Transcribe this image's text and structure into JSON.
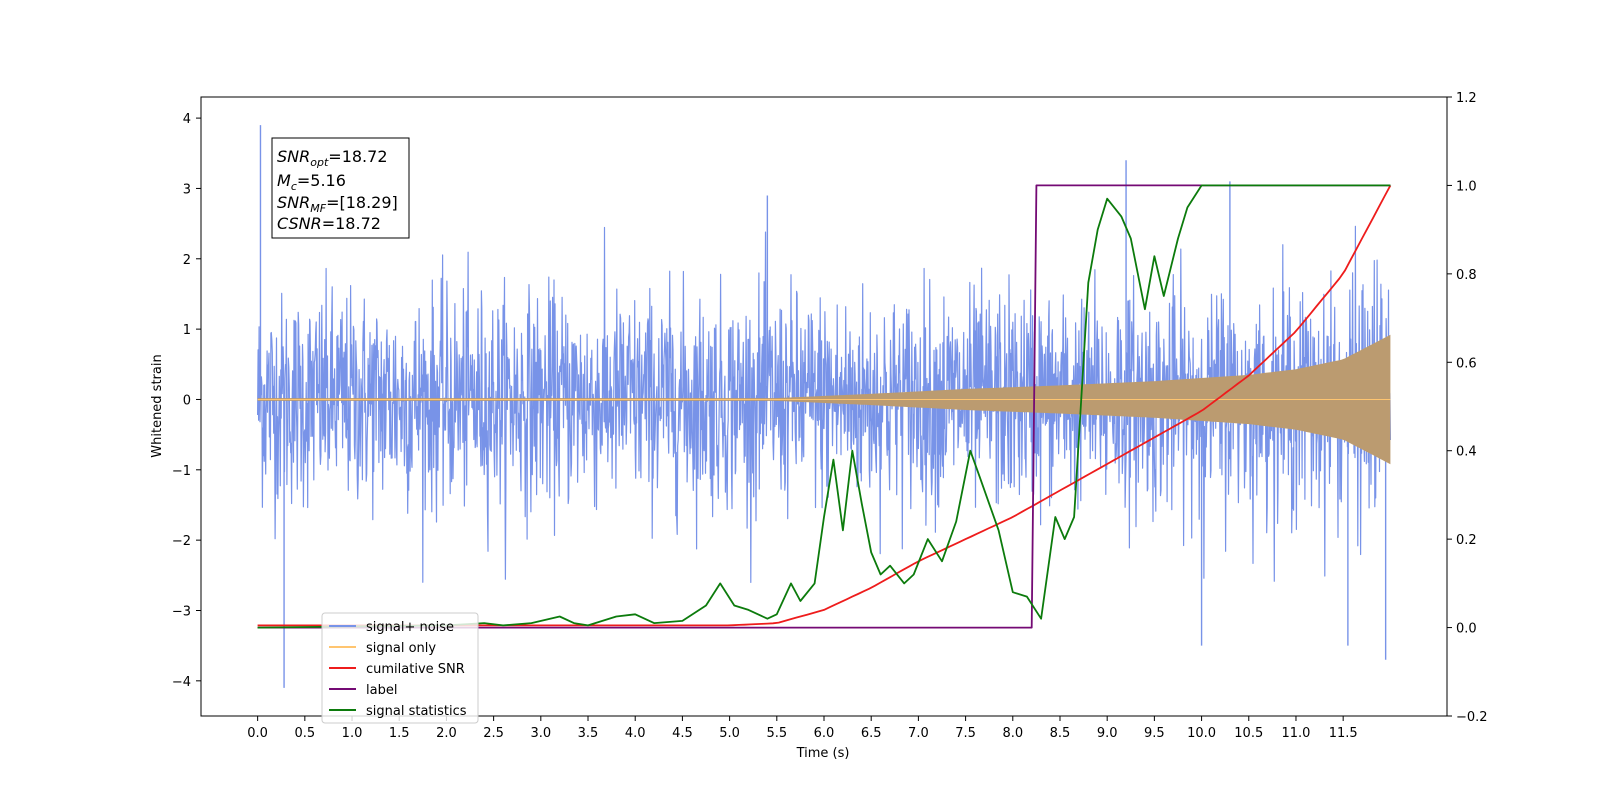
{
  "chart_data": {
    "type": "line",
    "xlabel": "Time (s)",
    "ylabel": "Whitened strain",
    "xlim": [
      -0.6,
      12.6
    ],
    "ylim": [
      -4.5,
      4.3
    ],
    "y2lim": [
      -0.2,
      1.2
    ],
    "x_ticks": [
      0.0,
      0.5,
      1.0,
      1.5,
      2.0,
      2.5,
      3.0,
      3.5,
      4.0,
      4.5,
      5.0,
      5.5,
      6.0,
      6.5,
      7.0,
      7.5,
      8.0,
      8.5,
      9.0,
      9.5,
      10.0,
      10.5,
      11.0,
      11.5
    ],
    "x_tick_labels": [
      "0.0",
      "0.5",
      "1.0",
      "1.5",
      "2.0",
      "2.5",
      "3.0",
      "3.5",
      "4.0",
      "4.5",
      "5.0",
      "5.5",
      "6.0",
      "6.5",
      "7.0",
      "7.5",
      "8.0",
      "8.5",
      "9.0",
      "9.5",
      "10.0",
      "10.5",
      "11.0",
      "11.5"
    ],
    "y_ticks": [
      -4,
      -3,
      -2,
      -1,
      0,
      1,
      2,
      3,
      4
    ],
    "y_tick_labels": [
      "−4",
      "−3",
      "−2",
      "−1",
      "0",
      "1",
      "2",
      "3",
      "4"
    ],
    "y2_ticks": [
      -0.2,
      0.0,
      0.2,
      0.4,
      0.6,
      0.8,
      1.0,
      1.2
    ],
    "y2_tick_labels": [
      "−0.2",
      "0.0",
      "0.2",
      "0.4",
      "0.6",
      "0.8",
      "1.0",
      "1.2"
    ],
    "grid": false,
    "legend_position": "lower-left",
    "info_box": {
      "line1_main": "SNR",
      "line1_sub": "opt",
      "line1_value": "=18.72",
      "line2_main": "M",
      "line2_sub": "c",
      "line2_value": "=5.16",
      "line3_main": "SNR",
      "line3_sub": "MF",
      "line3_value": "=[18.29]",
      "line4_main": "CSNR",
      "line4_value": "=18.72"
    },
    "series": [
      {
        "name": "signal+ noise",
        "axis": "left",
        "color": "#7893e8",
        "style": "dense-noise",
        "t_range": [
          0.0,
          12.0
        ],
        "peak_max": 3.9,
        "peak_min": -4.1,
        "typical_envelope": [
          -2.0,
          2.1
        ]
      },
      {
        "name": "signal only",
        "axis": "left",
        "color": "#ffc570",
        "style": "chirp",
        "envelope": {
          "t": [
            0.0,
            5.5,
            6.5,
            7.5,
            8.5,
            9.5,
            10.5,
            11.0,
            11.5,
            12.0
          ],
          "amp": [
            0.02,
            0.02,
            0.08,
            0.15,
            0.2,
            0.26,
            0.35,
            0.43,
            0.57,
            0.92
          ]
        }
      },
      {
        "name": "cumilative SNR",
        "axis": "right",
        "color": "#ee1c1c",
        "x": [
          0.0,
          5.0,
          5.5,
          6.0,
          6.5,
          7.0,
          7.5,
          8.0,
          8.5,
          9.0,
          9.5,
          10.0,
          10.5,
          11.0,
          11.5,
          12.0
        ],
        "y": [
          0.005,
          0.005,
          0.01,
          0.04,
          0.09,
          0.15,
          0.2,
          0.25,
          0.31,
          0.37,
          0.43,
          0.49,
          0.57,
          0.67,
          0.8,
          1.0
        ]
      },
      {
        "name": "label",
        "axis": "right",
        "color": "#740a74",
        "x": [
          0.0,
          8.2,
          8.25,
          12.0
        ],
        "y": [
          0.0,
          0.0,
          1.0,
          1.0
        ]
      },
      {
        "name": "signal statistics",
        "axis": "right",
        "color": "#0c7b0c",
        "x": [
          0.0,
          2.0,
          2.4,
          2.6,
          2.9,
          3.2,
          3.35,
          3.5,
          3.8,
          4.0,
          4.2,
          4.5,
          4.75,
          4.9,
          5.05,
          5.2,
          5.4,
          5.5,
          5.65,
          5.75,
          5.9,
          6.0,
          6.1,
          6.2,
          6.3,
          6.4,
          6.5,
          6.6,
          6.7,
          6.85,
          6.95,
          7.1,
          7.25,
          7.4,
          7.55,
          7.65,
          7.75,
          7.85,
          8.0,
          8.15,
          8.3,
          8.45,
          8.55,
          8.65,
          8.8,
          8.9,
          9.0,
          9.15,
          9.25,
          9.4,
          9.5,
          9.6,
          9.75,
          9.85,
          10.0,
          10.05,
          12.0
        ],
        "y": [
          0.0,
          0.005,
          0.01,
          0.005,
          0.01,
          0.025,
          0.01,
          0.005,
          0.025,
          0.03,
          0.01,
          0.015,
          0.05,
          0.1,
          0.05,
          0.04,
          0.02,
          0.03,
          0.1,
          0.06,
          0.1,
          0.25,
          0.38,
          0.22,
          0.4,
          0.28,
          0.17,
          0.12,
          0.14,
          0.1,
          0.12,
          0.2,
          0.15,
          0.24,
          0.4,
          0.34,
          0.28,
          0.22,
          0.08,
          0.07,
          0.02,
          0.25,
          0.2,
          0.25,
          0.78,
          0.9,
          0.97,
          0.93,
          0.88,
          0.72,
          0.84,
          0.75,
          0.88,
          0.95,
          1.0,
          1.0,
          1.0
        ]
      }
    ]
  },
  "legend": [
    {
      "label": "signal+ noise",
      "color": "#7893e8"
    },
    {
      "label": "signal only",
      "color": "#ffc570"
    },
    {
      "label": "cumilative SNR",
      "color": "#ee1c1c"
    },
    {
      "label": "label",
      "color": "#740a74"
    },
    {
      "label": "signal statistics",
      "color": "#0c7b0c"
    }
  ]
}
